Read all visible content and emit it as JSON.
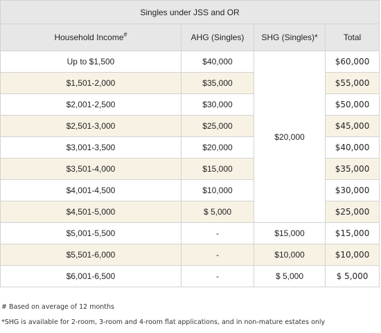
{
  "table": {
    "caption": "Singles under JSS and OR",
    "headers": {
      "income": "Household Income",
      "income_mark": "#",
      "ahg": "AHG (Singles)",
      "shg": "SHG (Singles)*",
      "total": "Total"
    },
    "rows": [
      {
        "income": "Up to $1,500",
        "ahg": "$40,000",
        "total": "$60,000"
      },
      {
        "income": "$1,501-2,000",
        "ahg": "$35,000",
        "total": "$55,000"
      },
      {
        "income": "$2,001-2,500",
        "ahg": "$30,000",
        "total": "$50,000"
      },
      {
        "income": "$2,501-3,000",
        "ahg": "$25,000",
        "total": "$45,000"
      },
      {
        "income": "$3,001-3,500",
        "ahg": "$20,000",
        "total": "$40,000"
      },
      {
        "income": "$3,501-4,000",
        "ahg": "$15,000",
        "total": "$35,000"
      },
      {
        "income": "$4,001-4,500",
        "ahg": "$10,000",
        "total": "$30,000"
      },
      {
        "income": "$4,501-5,000",
        "ahg": "$ 5,000",
        "total": "$25,000"
      },
      {
        "income": "$5,001-5,500",
        "ahg": "-",
        "shg": "$15,000",
        "total": "$15,000"
      },
      {
        "income": "$5,501-6,000",
        "ahg": "-",
        "shg": "$10,000",
        "total": "$10,000"
      },
      {
        "income": "$6,001-6,500",
        "ahg": "-",
        "shg": "$ 5,000",
        "total": "$ 5,000"
      }
    ],
    "shg_merged": "$20,000"
  },
  "notes": {
    "note1": "# Based on average of 12 months",
    "note2": "*SHG is available for 2-room, 3-room and 4-room flat applications, and in non-mature estates only"
  },
  "colors": {
    "header_text": "#9b1c1c",
    "header_bg": "#e7e7e7",
    "stripe_bg": "#f8f2e4",
    "border": "#d2d2d2"
  }
}
